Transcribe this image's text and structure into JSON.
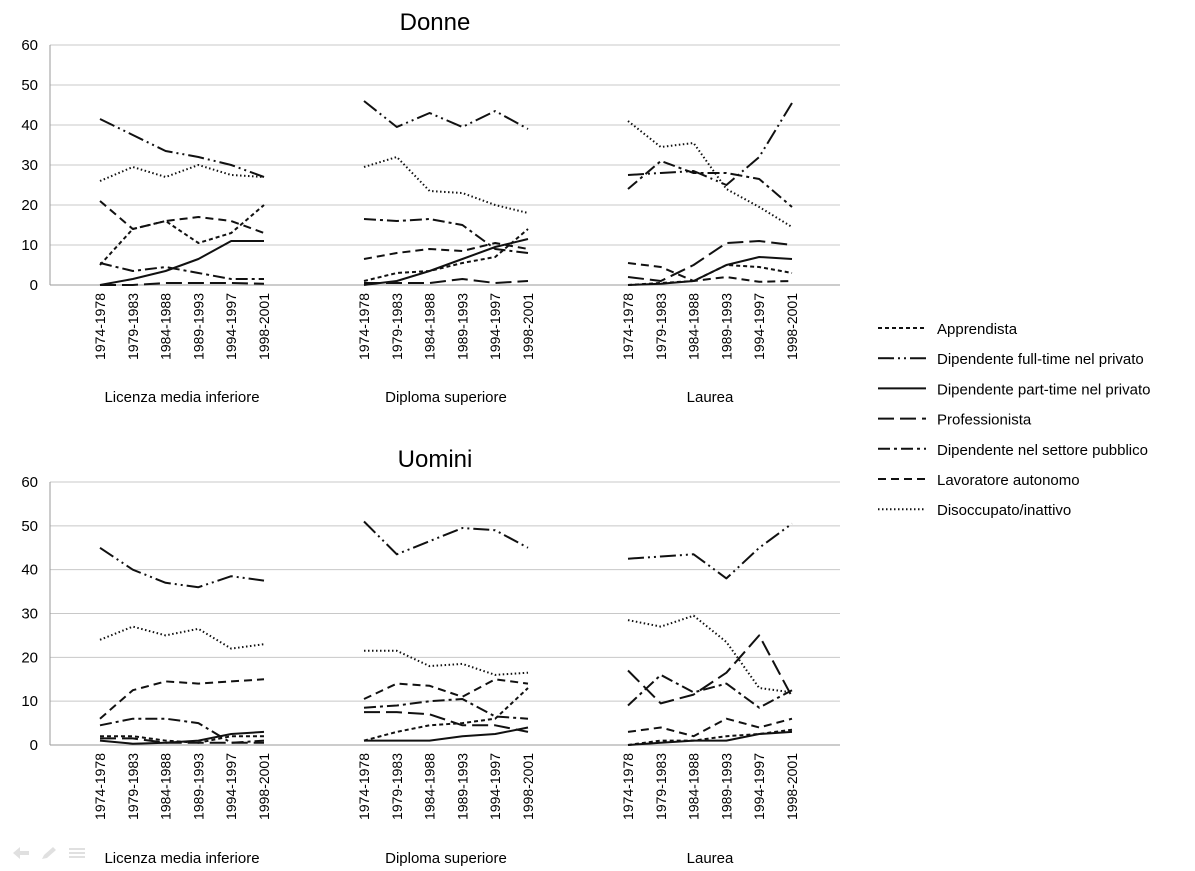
{
  "chart_data": [
    {
      "type": "line",
      "title": "Donne",
      "ylim": [
        0,
        60
      ],
      "yticks": [
        "0",
        "10",
        "20",
        "30",
        "40",
        "50",
        "60"
      ],
      "groups": [
        {
          "label": "Licenza media inferiore",
          "x": [
            "1974-1978",
            "1979-1983",
            "1984-1988",
            "1989-1993",
            "1994-1997",
            "1998-2001"
          ],
          "series": [
            {
              "name": "Apprendista",
              "values": [
                5,
                14,
                16,
                10.5,
                13,
                20
              ]
            },
            {
              "name": "Dipendente full-time nel privato",
              "values": [
                41.5,
                37.5,
                33.5,
                32,
                30,
                27
              ]
            },
            {
              "name": "Dipendente part-time nel privato",
              "values": [
                0,
                1.5,
                3.5,
                6.5,
                11,
                11
              ]
            },
            {
              "name": "Professionista",
              "values": [
                0,
                0,
                0.5,
                0.5,
                0.5,
                0.3
              ]
            },
            {
              "name": "Dipendente nel settore pubblico",
              "values": [
                5.5,
                3.5,
                4.5,
                3,
                1.5,
                1.5
              ]
            },
            {
              "name": "Lavoratore autonomo",
              "values": [
                21,
                14,
                16,
                17,
                16,
                13
              ]
            },
            {
              "name": "Disoccupato/inattivo",
              "values": [
                26,
                29.5,
                27,
                30,
                27.5,
                27
              ]
            }
          ]
        },
        {
          "label": "Diploma superiore",
          "x": [
            "1974-1978",
            "1979-1983",
            "1984-1988",
            "1989-1993",
            "1994-1997",
            "1998-2001"
          ],
          "series": [
            {
              "name": "Apprendista",
              "values": [
                1,
                3,
                3.5,
                5.5,
                7,
                14
              ]
            },
            {
              "name": "Dipendente full-time nel privato",
              "values": [
                46,
                39.5,
                43,
                39.5,
                43.5,
                39
              ]
            },
            {
              "name": "Dipendente part-time nel privato",
              "values": [
                0,
                1,
                3.5,
                6.5,
                9.5,
                11.5
              ]
            },
            {
              "name": "Professionista",
              "values": [
                0.5,
                0.5,
                0.5,
                1.5,
                0.5,
                1
              ]
            },
            {
              "name": "Dipendente nel settore pubblico",
              "values": [
                16.5,
                16,
                16.5,
                15,
                9,
                8
              ]
            },
            {
              "name": "Lavoratore autonomo",
              "values": [
                6.5,
                8,
                9,
                8.5,
                10.5,
                9
              ]
            },
            {
              "name": "Disoccupato/inattivo",
              "values": [
                29.5,
                32,
                23.5,
                23,
                20,
                18
              ]
            }
          ]
        },
        {
          "label": "Laurea",
          "x": [
            "1974-1978",
            "1979-1983",
            "1984-1988",
            "1989-1993",
            "1994-1997",
            "1998-2001"
          ],
          "series": [
            {
              "name": "Apprendista",
              "values": [
                0,
                0.5,
                1,
                5,
                4.5,
                3
              ]
            },
            {
              "name": "Dipendente full-time nel privato",
              "values": [
                27.5,
                28,
                28.5,
                25,
                32,
                45.5
              ]
            },
            {
              "name": "Dipendente part-time nel privato",
              "values": [
                0,
                0.3,
                1,
                5,
                7,
                6.5
              ]
            },
            {
              "name": "Professionista",
              "values": [
                2,
                1,
                5,
                10.5,
                11,
                10
              ]
            },
            {
              "name": "Dipendente nel settore pubblico",
              "values": [
                24,
                31,
                28,
                28,
                26.5,
                19.5
              ]
            },
            {
              "name": "Lavoratore autonomo",
              "values": [
                5.5,
                4.5,
                1,
                2,
                0.8,
                1
              ]
            },
            {
              "name": "Disoccupato/inattivo",
              "values": [
                41,
                34.5,
                35.5,
                24,
                19.5,
                14.5
              ]
            }
          ]
        }
      ]
    },
    {
      "type": "line",
      "title": "Uomini",
      "ylim": [
        0,
        60
      ],
      "yticks": [
        "0",
        "10",
        "20",
        "30",
        "40",
        "50",
        "60"
      ],
      "groups": [
        {
          "label": "Licenza media inferiore",
          "x": [
            "1974-1978",
            "1979-1983",
            "1984-1988",
            "1989-1993",
            "1994-1997",
            "1998-2001"
          ],
          "series": [
            {
              "name": "Apprendista",
              "values": [
                2,
                2,
                1,
                0.5,
                2,
                2
              ]
            },
            {
              "name": "Dipendente full-time nel privato",
              "values": [
                45,
                40,
                37,
                36,
                38.5,
                37.5
              ]
            },
            {
              "name": "Dipendente part-time nel privato",
              "values": [
                1,
                0.3,
                0.5,
                1,
                2.5,
                3
              ]
            },
            {
              "name": "Professionista",
              "values": [
                1.5,
                1.5,
                0.5,
                0.5,
                0.5,
                0.5
              ]
            },
            {
              "name": "Dipendente nel settore pubblico",
              "values": [
                4.5,
                6,
                6,
                5,
                0.5,
                1
              ]
            },
            {
              "name": "Lavoratore autonomo",
              "values": [
                6,
                12.5,
                14.5,
                14,
                14.5,
                15
              ]
            },
            {
              "name": "Disoccupato/inattivo",
              "values": [
                24,
                27,
                25,
                26.5,
                22,
                23
              ]
            }
          ]
        },
        {
          "label": "Diploma superiore",
          "x": [
            "1974-1978",
            "1979-1983",
            "1984-1988",
            "1989-1993",
            "1994-1997",
            "1998-2001"
          ],
          "series": [
            {
              "name": "Apprendista",
              "values": [
                1,
                3,
                4.5,
                5,
                6,
                13
              ]
            },
            {
              "name": "Dipendente full-time nel privato",
              "values": [
                51,
                43.5,
                46.5,
                49.5,
                49,
                45
              ]
            },
            {
              "name": "Dipendente part-time nel privato",
              "values": [
                1,
                1,
                1,
                2,
                2.5,
                4
              ]
            },
            {
              "name": "Professionista",
              "values": [
                7.5,
                7.5,
                7,
                4.5,
                4.5,
                3
              ]
            },
            {
              "name": "Dipendente nel settore pubblico",
              "values": [
                8.5,
                9,
                10,
                10.5,
                6.5,
                6
              ]
            },
            {
              "name": "Lavoratore autonomo",
              "values": [
                10.5,
                14,
                13.5,
                11,
                15,
                14
              ]
            },
            {
              "name": "Disoccupato/inattivo",
              "values": [
                21.5,
                21.5,
                18,
                18.5,
                16,
                16.5
              ]
            }
          ]
        },
        {
          "label": "Laurea",
          "x": [
            "1974-1978",
            "1979-1983",
            "1984-1988",
            "1989-1993",
            "1994-1997",
            "1998-2001"
          ],
          "series": [
            {
              "name": "Apprendista",
              "values": [
                0,
                1,
                1,
                2,
                2.5,
                3.5
              ]
            },
            {
              "name": "Dipendente full-time nel privato",
              "values": [
                42.5,
                43,
                43.5,
                38,
                45,
                50.5
              ]
            },
            {
              "name": "Dipendente part-time nel privato",
              "values": [
                0,
                0.5,
                1,
                1,
                2.5,
                3
              ]
            },
            {
              "name": "Professionista",
              "values": [
                17,
                9.5,
                11.5,
                16.5,
                25,
                11
              ]
            },
            {
              "name": "Dipendente nel settore pubblico",
              "values": [
                9,
                16,
                12,
                14,
                8.5,
                12.5
              ]
            },
            {
              "name": "Lavoratore autonomo",
              "values": [
                3,
                4,
                2,
                6,
                4,
                6
              ]
            },
            {
              "name": "Disoccupato/inattivo",
              "values": [
                28.5,
                27,
                29.5,
                23.5,
                13,
                12
              ]
            }
          ]
        }
      ]
    }
  ],
  "legend": [
    {
      "label": "Apprendista",
      "style": "short-dash"
    },
    {
      "label": "Dipendente full-time nel privato",
      "style": "long-dash-dot-dot"
    },
    {
      "label": "Dipendente part-time nel privato",
      "style": "solid"
    },
    {
      "label": "Professionista",
      "style": "long-dash"
    },
    {
      "label": "Dipendente nel settore pubblico",
      "style": "long-dash-dot"
    },
    {
      "label": "Lavoratore autonomo",
      "style": "dash"
    },
    {
      "label": "Disoccupato/inattivo",
      "style": "dotted"
    }
  ],
  "colors": {
    "line": "#111111",
    "grid": "#c8c8c8",
    "axis": "#9a9a9a"
  },
  "icons": [
    "back-arrow-icon",
    "pen-icon",
    "menu-icon"
  ]
}
